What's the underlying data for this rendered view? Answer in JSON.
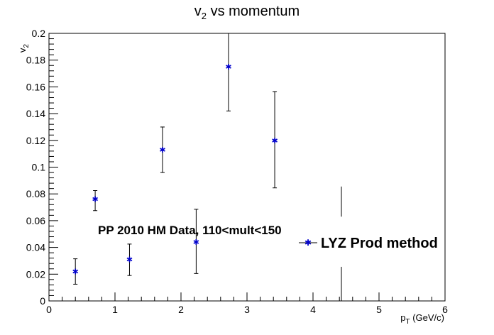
{
  "chart_data": {
    "type": "scatter",
    "title": {
      "main": "v",
      "sub": "2",
      "rest": " vs momentum"
    },
    "xlabel": {
      "main": "p",
      "sub": "T",
      "rest": " (GeV/c)"
    },
    "ylabel": {
      "main": "v",
      "sub": "2"
    },
    "xlim": [
      0,
      6
    ],
    "ylim": [
      0,
      0.2
    ],
    "x_major_ticks": [
      0,
      1,
      2,
      3,
      4,
      5,
      6
    ],
    "x_tick_labels": [
      "0",
      "1",
      "2",
      "3",
      "4",
      "5",
      "6"
    ],
    "y_major_ticks": [
      0,
      0.02,
      0.04,
      0.06,
      0.08,
      0.1,
      0.12,
      0.14,
      0.16,
      0.18,
      0.2
    ],
    "y_tick_labels": [
      "0",
      "0.02",
      "0.04",
      "0.06",
      "0.08",
      "0.1",
      "0.12",
      "0.14",
      "0.16",
      "0.18",
      "0.2"
    ],
    "series": [
      {
        "name": "LYZ Prod method",
        "color": "#0000cc",
        "marker": "star",
        "points": [
          {
            "x": 0.4,
            "y": 0.022,
            "yerr_low": 0.0125,
            "yerr_high": 0.0315
          },
          {
            "x": 0.7,
            "y": 0.076,
            "yerr_low": 0.0675,
            "yerr_high": 0.0825
          },
          {
            "x": 1.22,
            "y": 0.031,
            "yerr_low": 0.019,
            "yerr_high": 0.0425
          },
          {
            "x": 1.72,
            "y": 0.113,
            "yerr_low": 0.096,
            "yerr_high": 0.13
          },
          {
            "x": 2.23,
            "y": 0.044,
            "yerr_low": 0.0205,
            "yerr_high": 0.0685
          },
          {
            "x": 2.72,
            "y": 0.175,
            "yerr_low": 0.142,
            "yerr_high": 0.2
          },
          {
            "x": 3.42,
            "y": 0.12,
            "yerr_low": 0.0845,
            "yerr_high": 0.1565
          }
        ],
        "error_only": [
          {
            "x": 4.43,
            "segments": [
              [
                0,
                0.0255
              ],
              [
                0.063,
                0.0855
              ]
            ]
          }
        ]
      }
    ],
    "annotation": "PP 2010 HM Data, 110<mult<150",
    "legend": {
      "label": "LYZ Prod method",
      "placement": "right"
    }
  }
}
